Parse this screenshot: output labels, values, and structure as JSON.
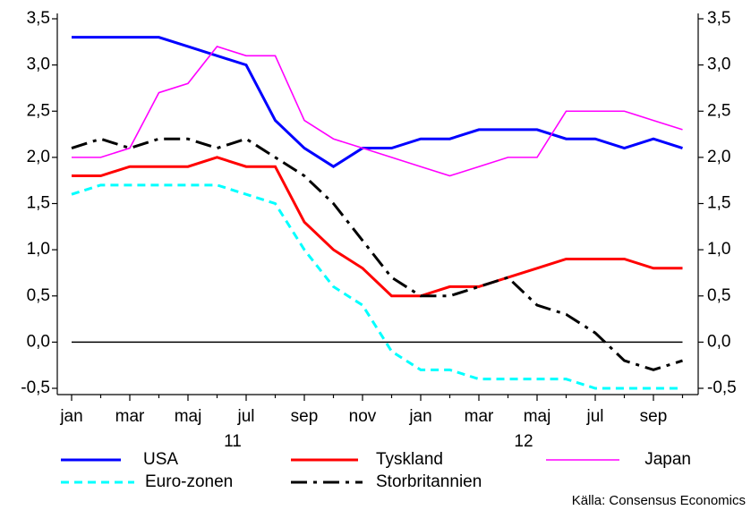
{
  "chart_data": {
    "type": "line",
    "categories": [
      "jan",
      null,
      "mar",
      null,
      "maj",
      null,
      "jul",
      null,
      "sep",
      null,
      "nov",
      null,
      "jan",
      null,
      "mar",
      null,
      "maj",
      null,
      "jul",
      null,
      "sep",
      null
    ],
    "year_labels": [
      "11",
      "12"
    ],
    "series": [
      {
        "name": "USA",
        "color": "#0000ff",
        "dash": "solid",
        "values": [
          3.3,
          3.3,
          3.3,
          3.3,
          3.2,
          3.1,
          3.0,
          2.4,
          2.1,
          1.9,
          2.1,
          2.1,
          2.2,
          2.2,
          2.3,
          2.3,
          2.3,
          2.2,
          2.2,
          2.1,
          2.2,
          2.1
        ]
      },
      {
        "name": "Tyskland",
        "color": "#ff0000",
        "dash": "solid",
        "values": [
          1.8,
          1.8,
          1.9,
          1.9,
          1.9,
          2.0,
          1.9,
          1.9,
          1.3,
          1.0,
          0.8,
          0.5,
          0.5,
          0.6,
          0.6,
          0.7,
          0.8,
          0.9,
          0.9,
          0.9,
          0.8,
          0.8
        ]
      },
      {
        "name": "Japan",
        "color": "#ff00ff",
        "dash": "thin",
        "values": [
          2.0,
          2.0,
          2.1,
          2.7,
          2.8,
          3.2,
          3.1,
          3.1,
          2.4,
          2.2,
          2.1,
          2.0,
          1.9,
          1.8,
          1.9,
          2.0,
          2.0,
          2.5,
          2.5,
          2.5,
          2.4,
          2.3
        ]
      },
      {
        "name": "Euro-zonen",
        "color": "#00ffff",
        "dash": "dashed",
        "values": [
          1.6,
          1.7,
          1.7,
          1.7,
          1.7,
          1.7,
          1.6,
          1.5,
          1.0,
          0.6,
          0.4,
          -0.1,
          -0.3,
          -0.3,
          -0.4,
          -0.4,
          -0.4,
          -0.4,
          -0.5,
          -0.5,
          -0.5,
          -0.5
        ]
      },
      {
        "name": "Storbritannien",
        "color": "#000000",
        "dash": "dashdot",
        "values": [
          2.1,
          2.2,
          2.1,
          2.2,
          2.2,
          2.1,
          2.2,
          2.0,
          1.8,
          1.5,
          1.1,
          0.7,
          0.5,
          0.5,
          0.6,
          0.7,
          0.4,
          0.3,
          0.1,
          -0.2,
          -0.3,
          -0.2
        ]
      }
    ],
    "ylim": [
      -0.5,
      3.5
    ],
    "yticks": [
      {
        "value": -0.5,
        "label": "-0,5"
      },
      {
        "value": 0,
        "label": "0,0"
      },
      {
        "value": 0.5,
        "label": "0,5"
      },
      {
        "value": 1.0,
        "label": "1,0"
      },
      {
        "value": 1.5,
        "label": "1,5"
      },
      {
        "value": 2.0,
        "label": "2,0"
      },
      {
        "value": 2.5,
        "label": "2,5"
      },
      {
        "value": 3.0,
        "label": "3,0"
      },
      {
        "value": 3.5,
        "label": "3,5"
      }
    ],
    "y2lim": [
      -0.5,
      3.5
    ],
    "y2ticks": [
      {
        "value": -0.5,
        "label": "-0,5"
      },
      {
        "value": 0,
        "label": "0,0"
      },
      {
        "value": 0.5,
        "label": "0,5"
      },
      {
        "value": 1.0,
        "label": "1,0"
      },
      {
        "value": 1.5,
        "label": "1,5"
      },
      {
        "value": 2.0,
        "label": "2,0"
      },
      {
        "value": 2.5,
        "label": "2,5"
      },
      {
        "value": 3.0,
        "label": "3,0"
      },
      {
        "value": 3.5,
        "label": "3,5"
      }
    ],
    "zero_line": true,
    "grid": false,
    "source": "Källa: Consensus Economics"
  }
}
